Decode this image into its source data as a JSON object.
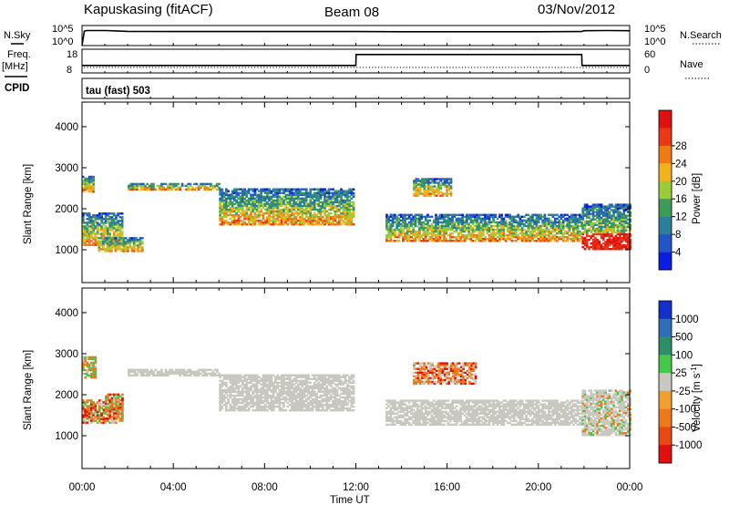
{
  "header": {
    "station": "Kapuskasing (fitACF)",
    "beam": "Beam 08",
    "date": "03/Nov/2012"
  },
  "top_panels": {
    "nsky_label": "N.Sky",
    "nsearch_label": "N.Search",
    "freq_label_1": "Freq.",
    "freq_label_2": "[MHz]",
    "nave_label": "Nave",
    "cpid_label": "CPID",
    "noise_ticks_left": [
      "10^5",
      "10^0"
    ],
    "noise_ticks_right": [
      "10^5",
      "10^0"
    ],
    "freq_ticks": [
      "18",
      "8"
    ],
    "nave_ticks": [
      "60",
      "0"
    ],
    "cpid_text": "tau (fast) 503"
  },
  "chart_data": [
    {
      "type": "line",
      "panel": "noise",
      "x": [
        0,
        0.1,
        0.2,
        1,
        2,
        4,
        6,
        8,
        10,
        12,
        14,
        16,
        18,
        20,
        21.9,
        22,
        23,
        24
      ],
      "series": [
        {
          "values": [
            0,
            3.6,
            3.75,
            3.75,
            3.55,
            3.5,
            3.5,
            3.5,
            3.5,
            3.5,
            3.45,
            3.45,
            3.45,
            3.45,
            3.5,
            3.7,
            3.75,
            3.7
          ]
        }
      ],
      "ylim": [
        0,
        5
      ]
    },
    {
      "type": "line",
      "panel": "frequency",
      "x": [
        0,
        4,
        8,
        12,
        12.01,
        16,
        20,
        21.9,
        21.91,
        24
      ],
      "series": [
        {
          "values": [
            10.8,
            10.8,
            10.8,
            10.8,
            16.3,
            16.3,
            16.3,
            16.3,
            10.8,
            10.8
          ]
        }
      ],
      "ylim": [
        7,
        19
      ]
    },
    {
      "type": "heatmap",
      "panel": "power",
      "xlabel": "",
      "ylabel": "Slant Range [km]",
      "xlim": [
        0,
        24
      ],
      "ylim": [
        200,
        4600
      ],
      "yticks": [
        1000,
        2000,
        3000,
        4000
      ],
      "colorbar": {
        "label": "Power [dB]",
        "ticks": [
          4,
          8,
          12,
          16,
          20,
          24,
          28
        ],
        "colors": [
          "#0a1de0",
          "#2255c8",
          "#2b7f9a",
          "#3f9a57",
          "#9acc3a",
          "#f2b21e",
          "#ef7a16",
          "#e83a14",
          "#e01010"
        ]
      },
      "regions": [
        {
          "t0": 0.0,
          "t1": 0.5,
          "r0": 2400,
          "r1": 2800
        },
        {
          "t0": 0.0,
          "t1": 1.8,
          "r0": 1100,
          "r1": 1900
        },
        {
          "t0": 0.7,
          "t1": 2.6,
          "r0": 950,
          "r1": 1300
        },
        {
          "t0": 2.0,
          "t1": 6.0,
          "r0": 2450,
          "r1": 2620
        },
        {
          "t0": 6.0,
          "t1": 11.9,
          "r0": 1600,
          "r1": 2500
        },
        {
          "t0": 13.3,
          "t1": 21.9,
          "r0": 1200,
          "r1": 1850
        },
        {
          "t0": 14.5,
          "t1": 16.2,
          "r0": 2300,
          "r1": 2750
        },
        {
          "t0": 21.9,
          "t1": 24.0,
          "r0": 1000,
          "r1": 2100
        }
      ]
    },
    {
      "type": "heatmap",
      "panel": "velocity",
      "xlabel": "Time UT",
      "ylabel": "Slant Range [km]",
      "xlim": [
        0,
        24
      ],
      "ylim": [
        200,
        4600
      ],
      "yticks": [
        1000,
        2000,
        3000,
        4000
      ],
      "xticks": [
        "00:00",
        "04:00",
        "08:00",
        "12:00",
        "16:00",
        "20:00",
        "00:00"
      ],
      "colorbar": {
        "label": "Velocity [m s-1]",
        "ticks": [
          1000,
          500,
          100,
          25,
          -25,
          -100,
          -500,
          -1000
        ],
        "colors": [
          "#1430c8",
          "#2f6fb8",
          "#2e8e6a",
          "#46c84a",
          "#c8c8c0",
          "#f0a030",
          "#ec7a1a",
          "#e84a14",
          "#e01010"
        ]
      },
      "regions": [
        {
          "t0": 0.0,
          "t1": 0.6,
          "r0": 2400,
          "r1": 2900
        },
        {
          "t0": 0.0,
          "t1": 1.8,
          "r0": 1300,
          "r1": 1850
        },
        {
          "t0": 1.0,
          "t1": 1.8,
          "r0": 1400,
          "r1": 2000
        },
        {
          "t0": 2.0,
          "t1": 6.0,
          "r0": 2450,
          "r1": 2620
        },
        {
          "t0": 6.0,
          "t1": 11.9,
          "r0": 1600,
          "r1": 2500
        },
        {
          "t0": 13.3,
          "t1": 21.9,
          "r0": 1250,
          "r1": 1850
        },
        {
          "t0": 14.5,
          "t1": 17.2,
          "r0": 2250,
          "r1": 2750
        },
        {
          "t0": 21.9,
          "t1": 24.0,
          "r0": 1000,
          "r1": 2100
        }
      ]
    }
  ]
}
